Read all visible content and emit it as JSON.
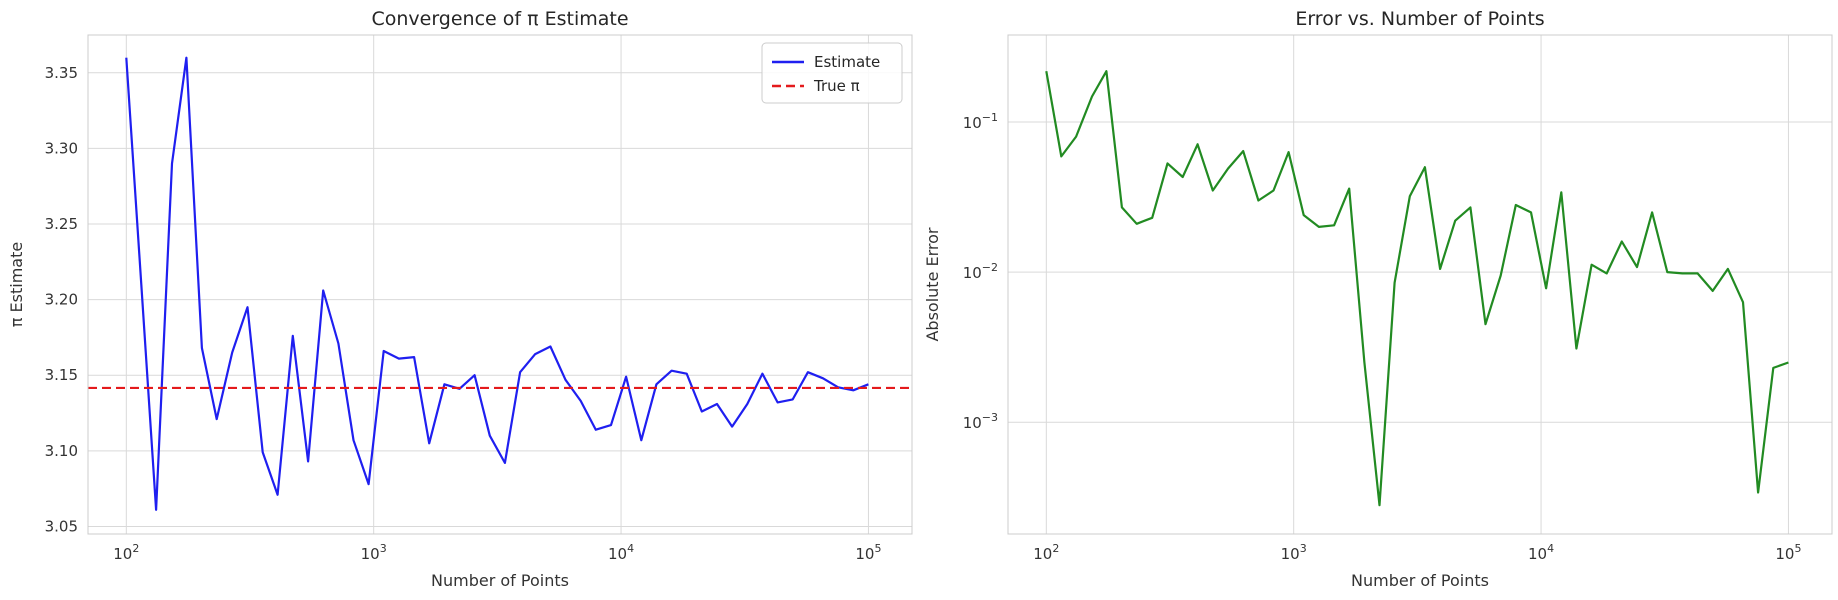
{
  "chart_data": [
    {
      "type": "line",
      "title": "Convergence of π Estimate",
      "xlabel": "Number of Points",
      "ylabel": "π Estimate",
      "xscale": "log",
      "xlim": [
        70,
        150000
      ],
      "ylim": [
        3.045,
        3.375
      ],
      "grid": true,
      "legend_position": "top-right",
      "xticks": [
        {
          "value": 100,
          "base": "10",
          "exp": "2"
        },
        {
          "value": 1000,
          "base": "10",
          "exp": "3"
        },
        {
          "value": 10000,
          "base": "10",
          "exp": "4"
        },
        {
          "value": 100000,
          "base": "10",
          "exp": "5"
        }
      ],
      "yticks": [
        {
          "value": 3.05,
          "label": "3.05"
        },
        {
          "value": 3.1,
          "label": "3.10"
        },
        {
          "value": 3.15,
          "label": "3.15"
        },
        {
          "value": 3.2,
          "label": "3.20"
        },
        {
          "value": 3.25,
          "label": "3.25"
        },
        {
          "value": 3.3,
          "label": "3.30"
        },
        {
          "value": 3.35,
          "label": "3.35"
        }
      ],
      "series": [
        {
          "name": "Estimate",
          "color": "#1f1ff0",
          "style": "solid",
          "x": [
            100,
            115,
            132,
            153,
            175,
            202,
            232,
            268,
            309,
            356,
            409,
            471,
            543,
            625,
            720,
            829,
            954,
            1098,
            1265,
            1456,
            1677,
            1931,
            2222,
            2559,
            2947,
            3393,
            3906,
            4498,
            5179,
            5963,
            6866,
            7906,
            9103,
            10481,
            12068,
            13895,
            15999,
            18421,
            21210,
            24421,
            28118,
            32375,
            37276,
            42919,
            49417,
            56898,
            65512,
            75431,
            86851,
            100000
          ],
          "y": [
            3.36,
            3.21,
            3.061,
            3.29,
            3.36,
            3.168,
            3.121,
            3.165,
            3.195,
            3.099,
            3.071,
            3.176,
            3.093,
            3.206,
            3.171,
            3.107,
            3.078,
            3.166,
            3.161,
            3.162,
            3.105,
            3.144,
            3.141,
            3.15,
            3.11,
            3.092,
            3.152,
            3.164,
            3.169,
            3.147,
            3.133,
            3.114,
            3.117,
            3.149,
            3.107,
            3.144,
            3.153,
            3.151,
            3.126,
            3.131,
            3.116,
            3.131,
            3.151,
            3.132,
            3.134,
            3.152,
            3.148,
            3.142,
            3.14,
            3.144
          ]
        },
        {
          "name": "True π",
          "color": "#e41a1c",
          "style": "dashed",
          "y_constant": 3.14159
        }
      ]
    },
    {
      "type": "line",
      "title": "Error vs. Number of Points",
      "xlabel": "Number of Points",
      "ylabel": "Absolute Error",
      "xscale": "log",
      "yscale": "log",
      "xlim": [
        70,
        150000
      ],
      "ylim": [
        0.00018,
        0.38
      ],
      "grid": true,
      "xticks": [
        {
          "value": 100,
          "base": "10",
          "exp": "2"
        },
        {
          "value": 1000,
          "base": "10",
          "exp": "3"
        },
        {
          "value": 10000,
          "base": "10",
          "exp": "4"
        },
        {
          "value": 100000,
          "base": "10",
          "exp": "5"
        }
      ],
      "yticks": [
        {
          "value": 0.1,
          "base": "10",
          "exp": "−1"
        },
        {
          "value": 0.01,
          "base": "10",
          "exp": "−2"
        },
        {
          "value": 0.001,
          "base": "10",
          "exp": "−3"
        }
      ],
      "series": [
        {
          "color": "#228b22",
          "style": "solid",
          "x": [
            100,
            115,
            132,
            153,
            175,
            202,
            232,
            268,
            309,
            356,
            409,
            471,
            543,
            625,
            720,
            829,
            954,
            1098,
            1265,
            1456,
            1677,
            1931,
            2222,
            2559,
            2947,
            3393,
            3906,
            4498,
            5179,
            5963,
            6866,
            7906,
            9103,
            10481,
            12068,
            13895,
            15999,
            18421,
            21210,
            24421,
            28118,
            32375,
            37276,
            42919,
            49417,
            56898,
            65512,
            75431,
            86851,
            100000
          ],
          "y": [
            0.218,
            0.059,
            0.08,
            0.148,
            0.218,
            0.027,
            0.021,
            0.023,
            0.053,
            0.043,
            0.071,
            0.035,
            0.049,
            0.064,
            0.03,
            0.035,
            0.063,
            0.024,
            0.02,
            0.0205,
            0.036,
            0.0025,
            0.00028,
            0.0085,
            0.032,
            0.05,
            0.0105,
            0.022,
            0.027,
            0.0045,
            0.0095,
            0.028,
            0.025,
            0.0078,
            0.034,
            0.0031,
            0.0112,
            0.0098,
            0.016,
            0.0108,
            0.025,
            0.01,
            0.0098,
            0.0098,
            0.0075,
            0.0105,
            0.0063,
            0.00034,
            0.0023,
            0.0025
          ]
        }
      ]
    }
  ]
}
